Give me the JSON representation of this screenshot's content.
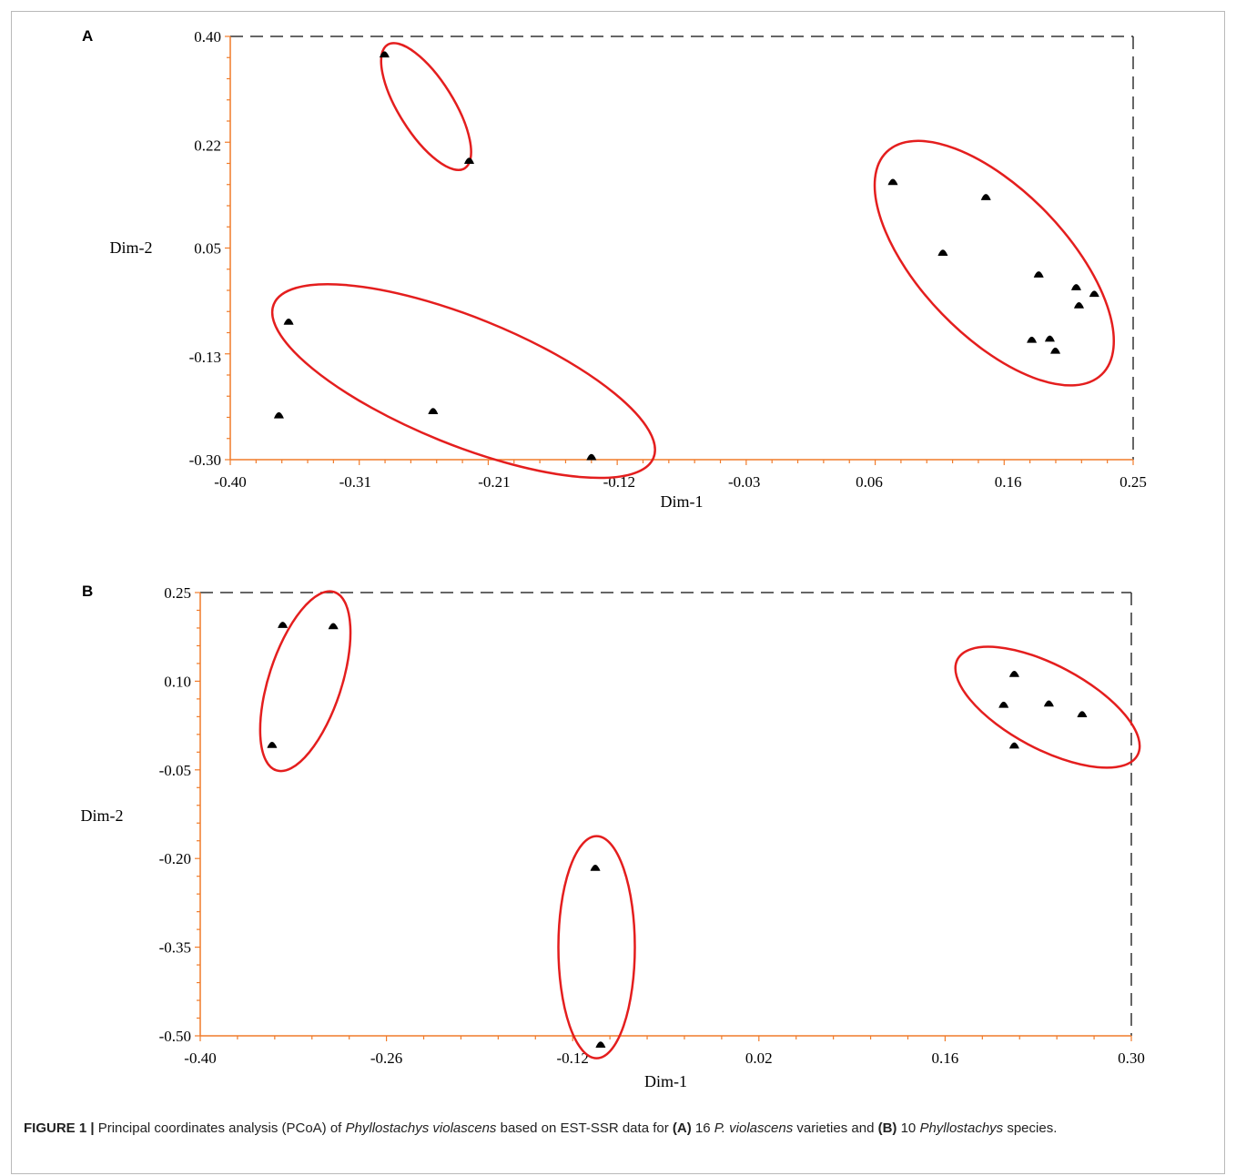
{
  "panels": [
    {
      "label": "A"
    },
    {
      "label": "B"
    }
  ],
  "colors": {
    "axis": "#f07b2a",
    "frame": "#333333",
    "ellipse": "#e41e1e",
    "marker": "#000000"
  },
  "caption": {
    "figure": "FIGURE 1 |",
    "t1": " Principal coordinates analysis (PCoA) of ",
    "i1": "Phyllostachys violascens",
    "t2": " based on EST-SSR data for ",
    "b1": "(A)",
    "t3": " 16 ",
    "i2": "P. violascens",
    "t4": " varieties and ",
    "b2": "(B)",
    "t5": " 10 ",
    "i3": "Phyllostachys",
    "t6": " species."
  },
  "chart_data": [
    {
      "type": "scatter",
      "panel": "A",
      "xlabel": "Dim-1",
      "ylabel": "Dim-2",
      "xlim": [
        -0.4,
        0.25
      ],
      "ylim": [
        -0.3,
        0.4
      ],
      "xticks": [
        -0.4,
        -0.31,
        -0.21,
        -0.12,
        -0.03,
        0.06,
        0.16,
        0.25
      ],
      "yticks": [
        -0.3,
        -0.13,
        0.05,
        0.22,
        0.4
      ],
      "xtick_labels": [
        "-0.40",
        "-0.31",
        "-0.21",
        "-0.12",
        "-0.03",
        "0.06",
        "0.16",
        "0.25"
      ],
      "ytick_labels": [
        "-0.30",
        "-0.13",
        "0.05",
        "0.22",
        "0.40"
      ],
      "points": [
        [
          -0.289,
          0.372
        ],
        [
          -0.228,
          0.196
        ],
        [
          -0.358,
          -0.07
        ],
        [
          -0.365,
          -0.225
        ],
        [
          -0.254,
          -0.218
        ],
        [
          -0.14,
          -0.294
        ],
        [
          0.077,
          0.161
        ],
        [
          0.113,
          0.044
        ],
        [
          0.144,
          0.136
        ],
        [
          0.182,
          0.008
        ],
        [
          0.177,
          -0.1
        ],
        [
          0.19,
          -0.098
        ],
        [
          0.209,
          -0.013
        ],
        [
          0.194,
          -0.118
        ],
        [
          0.211,
          -0.043
        ],
        [
          0.222,
          -0.024
        ]
      ],
      "clusters": [
        {
          "cx": -0.259,
          "cy": 0.284,
          "rx": 0.02,
          "ry": 0.126,
          "angle": -32
        },
        {
          "cx": -0.232,
          "cy": -0.17,
          "rx": 0.055,
          "ry": 0.305,
          "angle": -68
        },
        {
          "cx": 0.15,
          "cy": 0.025,
          "rx": 0.04,
          "ry": 0.228,
          "angle": -44
        }
      ]
    },
    {
      "type": "scatter",
      "panel": "B",
      "xlabel": "Dim-1",
      "ylabel": "Dim-2",
      "xlim": [
        -0.4,
        0.3
      ],
      "ylim": [
        -0.5,
        0.25
      ],
      "xticks": [
        -0.4,
        -0.26,
        -0.12,
        0.02,
        0.16,
        0.3
      ],
      "yticks": [
        -0.5,
        -0.35,
        -0.2,
        -0.05,
        0.1,
        0.25
      ],
      "xtick_labels": [
        "-0.40",
        "-0.26",
        "-0.12",
        "0.02",
        "0.16",
        "0.30"
      ],
      "ytick_labels": [
        "-0.50",
        "-0.35",
        "-0.20",
        "-0.05",
        "0.10",
        "0.25"
      ],
      "points": [
        [
          -0.338,
          0.197
        ],
        [
          -0.3,
          0.195
        ],
        [
          -0.346,
          -0.006
        ],
        [
          -0.103,
          -0.214
        ],
        [
          -0.099,
          -0.513
        ],
        [
          0.212,
          0.114
        ],
        [
          0.204,
          0.062
        ],
        [
          0.238,
          0.064
        ],
        [
          0.263,
          0.046
        ],
        [
          0.212,
          -0.007
        ]
      ],
      "clusters": [
        {
          "cx": -0.321,
          "cy": 0.1,
          "rx": 0.025,
          "ry": 0.16,
          "angle": 18
        },
        {
          "cx": -0.102,
          "cy": -0.35,
          "rx": 0.029,
          "ry": 0.187,
          "angle": 0
        },
        {
          "cx": 0.237,
          "cy": 0.056,
          "rx": 0.04,
          "ry": 0.156,
          "angle": -62
        }
      ]
    }
  ]
}
